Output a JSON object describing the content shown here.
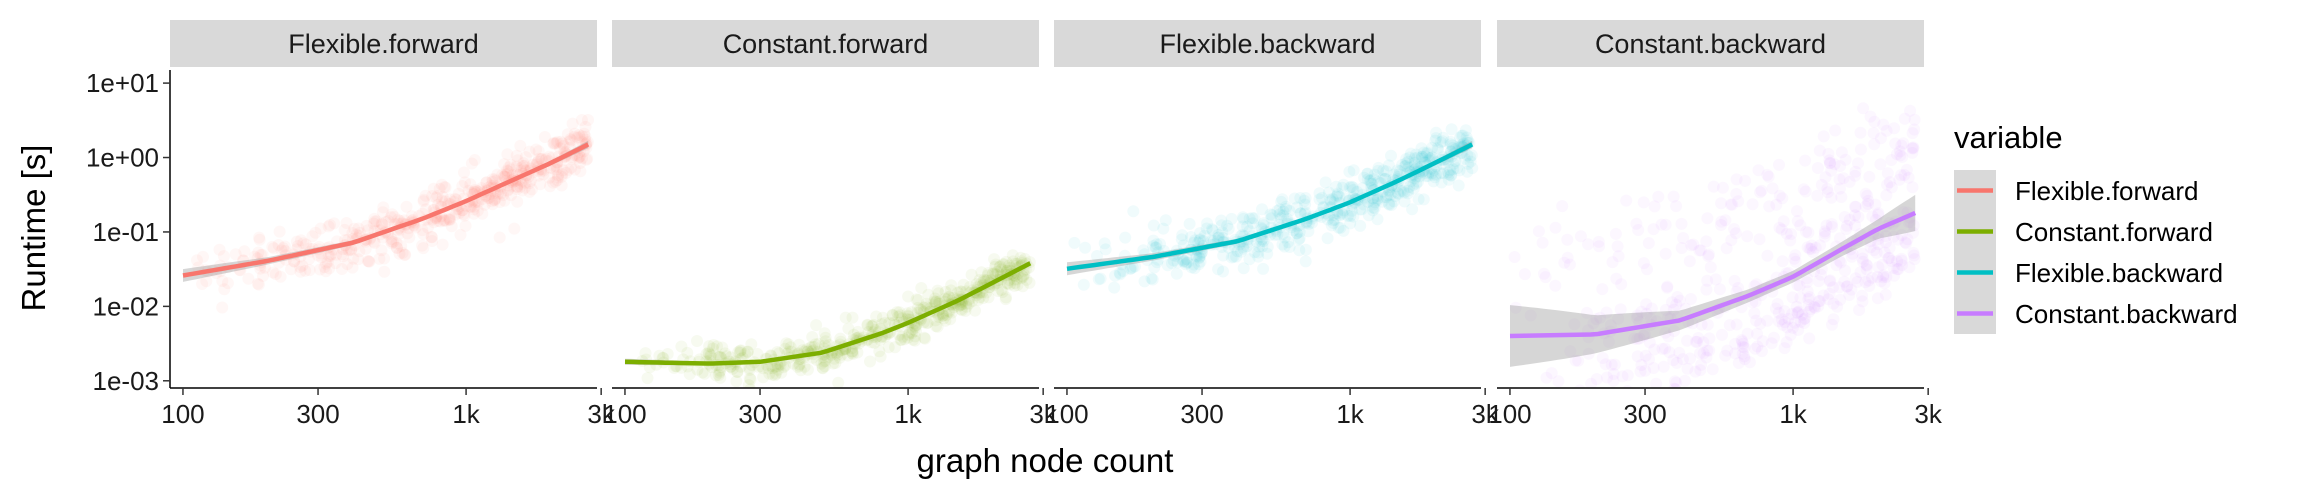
{
  "chart_data": {
    "type": "scatter",
    "xlabel": "graph node count",
    "ylabel": "Runtime [s]",
    "x_scale": "log10",
    "y_scale": "log10",
    "xlim": [
      90,
      2900
    ],
    "ylim": [
      0.0008,
      15
    ],
    "x_ticks": [
      100,
      300,
      1000,
      3000
    ],
    "x_tick_labels": [
      "100",
      "300",
      "1k",
      "3k"
    ],
    "y_ticks": [
      0.001,
      0.01,
      0.1,
      1,
      10
    ],
    "y_tick_labels": [
      "1e-03",
      "1e-02",
      "1e-01",
      "1e+00",
      "1e+01"
    ],
    "grid": false,
    "legend_title": "variable",
    "legend_position": "right",
    "panels": [
      {
        "strip": "Flexible.forward",
        "variable": "Flexible.forward",
        "color": "#F8766D",
        "smooth": {
          "x": [
            100,
            200,
            400,
            700,
            1000,
            1500,
            2000,
            2700
          ],
          "y": [
            0.026,
            0.041,
            0.072,
            0.15,
            0.26,
            0.52,
            0.85,
            1.5
          ]
        },
        "band_halfwidth": [
          1.22,
          1.12,
          1.08,
          1.07,
          1.06,
          1.07,
          1.08,
          1.12
        ],
        "cloud": {
          "x_range": [
            100,
            2700
          ],
          "spread": [
            0.55,
            0.45
          ]
        }
      },
      {
        "strip": "Constant.forward",
        "variable": "Constant.forward",
        "color": "#7CAE00",
        "smooth": {
          "x": [
            100,
            200,
            300,
            500,
            800,
            1000,
            1500,
            2000,
            2700
          ],
          "y": [
            0.0018,
            0.0017,
            0.0018,
            0.0024,
            0.0043,
            0.006,
            0.012,
            0.021,
            0.038
          ]
        },
        "band_halfwidth": [
          1.1,
          1.06,
          1.05,
          1.05,
          1.05,
          1.05,
          1.05,
          1.06,
          1.08
        ],
        "cloud": {
          "x_range": [
            100,
            2700
          ],
          "spread": [
            0.35,
            0.35
          ]
        }
      },
      {
        "strip": "Flexible.backward",
        "variable": "Flexible.backward",
        "color": "#00BFC4",
        "smooth": {
          "x": [
            100,
            200,
            400,
            700,
            1000,
            1500,
            2000,
            2700
          ],
          "y": [
            0.032,
            0.046,
            0.075,
            0.15,
            0.25,
            0.5,
            0.85,
            1.5
          ]
        },
        "band_halfwidth": [
          1.22,
          1.12,
          1.08,
          1.07,
          1.06,
          1.07,
          1.08,
          1.12
        ],
        "cloud": {
          "x_range": [
            100,
            2700
          ],
          "spread": [
            0.55,
            0.5
          ]
        }
      },
      {
        "strip": "Constant.backward",
        "variable": "Constant.backward",
        "color": "#C77CFF",
        "smooth": {
          "x": [
            100,
            200,
            400,
            700,
            1000,
            1500,
            2000,
            2700
          ],
          "y": [
            0.004,
            0.0042,
            0.0065,
            0.014,
            0.025,
            0.06,
            0.11,
            0.18
          ]
        },
        "band_halfwidth": [
          2.6,
          1.8,
          1.35,
          1.22,
          1.2,
          1.25,
          1.35,
          1.75
        ],
        "cloud": {
          "x_range": [
            100,
            2700
          ],
          "spread": [
            0.9,
            0.9
          ]
        }
      }
    ],
    "legend": [
      {
        "label": "Flexible.forward",
        "color": "#F8766D"
      },
      {
        "label": "Constant.forward",
        "color": "#7CAE00"
      },
      {
        "label": "Flexible.backward",
        "color": "#00BFC4"
      },
      {
        "label": "Constant.backward",
        "color": "#C77CFF"
      }
    ]
  }
}
